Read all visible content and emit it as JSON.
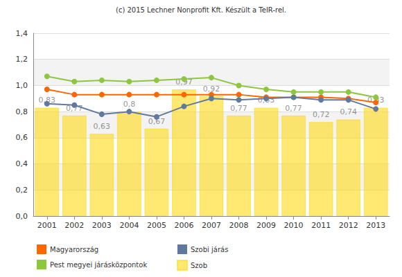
{
  "chart_data": {
    "type": "bar",
    "title": "(c) 2015 Lechner Nonprofit Kft. Készült a TeIR-rel.",
    "categories": [
      "2001",
      "2002",
      "2003",
      "2004",
      "2005",
      "2006",
      "2007",
      "2008",
      "2009",
      "2010",
      "2011",
      "2012",
      "2013"
    ],
    "series": [
      {
        "name": "Szob",
        "type": "bar",
        "color": "#ffd700",
        "data_labels": true,
        "values": [
          0.83,
          0.77,
          0.63,
          0.8,
          0.67,
          0.97,
          0.92,
          0.77,
          0.83,
          0.77,
          0.72,
          0.74,
          0.83
        ],
        "value_labels": [
          "0,83",
          "0,77",
          "0,63",
          "0,8",
          "0,67",
          "0,97",
          "0,92",
          "0,77",
          "0,83",
          "0,77",
          "0,72",
          "0,74",
          "0,83"
        ]
      },
      {
        "name": "Magyarország",
        "type": "line",
        "color": "#ff6600",
        "marker": "circle",
        "values": [
          0.97,
          0.93,
          0.93,
          0.93,
          0.93,
          0.93,
          0.93,
          0.93,
          0.91,
          0.91,
          0.91,
          0.9,
          0.87
        ]
      },
      {
        "name": "Szobi járás",
        "type": "line",
        "color": "#5f7a9e",
        "marker": "circle",
        "values": [
          0.86,
          0.85,
          0.78,
          0.8,
          0.76,
          0.84,
          0.9,
          0.89,
          0.9,
          0.91,
          0.89,
          0.89,
          0.82
        ]
      },
      {
        "name": "Pest megyei járásközpontok",
        "type": "line",
        "color": "#8dc63f",
        "marker": "circle",
        "values": [
          1.07,
          1.03,
          1.04,
          1.03,
          1.04,
          1.05,
          1.06,
          1.0,
          0.97,
          0.95,
          0.95,
          0.95,
          0.91
        ]
      }
    ],
    "ylim": [
      0,
      1.4
    ],
    "yticks": [
      {
        "value": 0,
        "label": "0,0"
      },
      {
        "value": 0.2,
        "label": "0,2"
      },
      {
        "value": 0.4,
        "label": "0,4"
      },
      {
        "value": 0.6,
        "label": "0,6"
      },
      {
        "value": 0.8,
        "label": "0,8"
      },
      {
        "value": 1,
        "label": "1,0"
      },
      {
        "value": 1.2,
        "label": "1,2"
      },
      {
        "value": 1.4,
        "label": "1,4"
      }
    ],
    "grid": true,
    "legend": "bottom"
  }
}
